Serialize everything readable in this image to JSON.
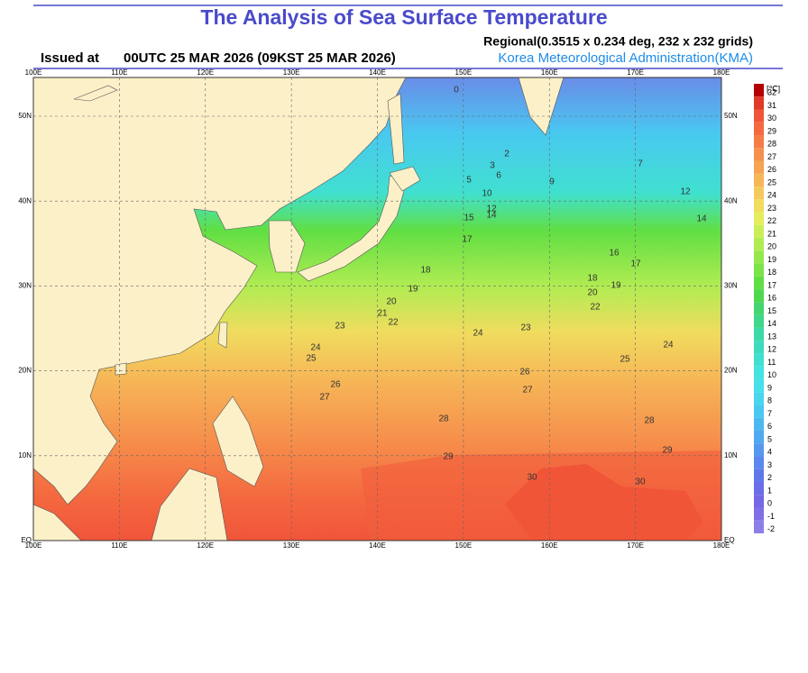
{
  "header": {
    "title": "The Analysis of Sea Surface Temperature",
    "issued_label": "Issued at",
    "issued_time": "00UTC 25 MAR 2026 (09KST 25 MAR 2026)",
    "regional": "Regional(0.3515 x 0.234 deg, 232 x 232 grids)",
    "agency": "Korea Meteorological Administration(KMA)"
  },
  "map": {
    "lon_labels": [
      "100E",
      "110E",
      "120E",
      "130E",
      "140E",
      "150E",
      "160E",
      "170E",
      "180E"
    ],
    "lat_labels": [
      "50N",
      "40N",
      "30N",
      "20N",
      "10N",
      "EQ"
    ],
    "contour_labels": [
      0,
      2,
      3,
      5,
      6,
      9,
      10,
      12,
      14,
      15,
      17,
      18,
      19,
      20,
      21,
      22,
      23,
      24,
      25,
      26,
      27,
      28,
      29,
      30,
      16,
      17,
      18,
      19,
      20,
      22,
      23,
      24,
      24,
      25,
      26,
      27,
      28,
      29,
      30,
      14,
      12,
      7
    ]
  },
  "colorbar": {
    "unit": "[℃]",
    "levels": [
      32,
      31,
      30,
      29,
      28,
      27,
      26,
      25,
      24,
      23,
      22,
      21,
      20,
      19,
      18,
      17,
      16,
      15,
      14,
      13,
      12,
      11,
      10,
      9,
      8,
      7,
      6,
      5,
      4,
      3,
      2,
      1,
      0,
      -1,
      -2
    ],
    "colors": [
      "#b40000",
      "#e03a2a",
      "#f0553a",
      "#f46a40",
      "#f57d45",
      "#f6904c",
      "#f6a352",
      "#f6b757",
      "#f5ca5c",
      "#f0dc5e",
      "#e6ec5c",
      "#cbee58",
      "#b0ec52",
      "#95e84c",
      "#7be447",
      "#60df43",
      "#4ed84f",
      "#45d56e",
      "#40d68c",
      "#3ed9a6",
      "#3edcbd",
      "#40e0d0",
      "#43e3e0",
      "#45e0ea",
      "#47d6ee",
      "#49c8f0",
      "#4cb8f0",
      "#50a8ef",
      "#5598ee",
      "#5a88ec",
      "#6078ea",
      "#6a6ee8",
      "#7468e6",
      "#8070e6",
      "#8c80e8"
    ]
  }
}
